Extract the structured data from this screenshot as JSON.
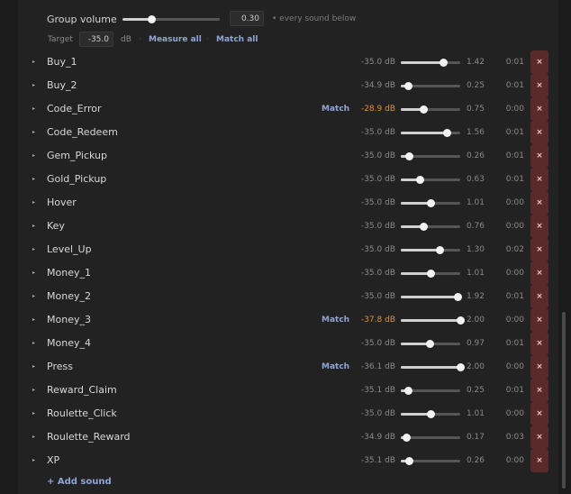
{
  "group": {
    "volume_label": "Group volume",
    "volume_value": 0.3,
    "volume_text": "0.30",
    "note": "• every sound below",
    "target_label": "Target",
    "target_value": "-35.0",
    "target_unit": "dB",
    "measure_all": "Measure all",
    "match_all": "Match all",
    "separator": "·"
  },
  "slider_max": 2.0,
  "colors": {
    "link": "#8fa5d8",
    "warning": "#e0903a",
    "delete_bg": "#5a2a2a"
  },
  "icons": {
    "expand": "triangle-right",
    "delete": "x"
  },
  "match_label": "Match",
  "delete_label": "×",
  "expand_glyph": "▸",
  "sounds": [
    {
      "name": "Buy_1",
      "db": "-35.0 dB",
      "volume": "1.42",
      "duration": "0:01",
      "match": false,
      "warn": false
    },
    {
      "name": "Buy_2",
      "db": "-34.9 dB",
      "volume": "0.25",
      "duration": "0:01",
      "match": false,
      "warn": false
    },
    {
      "name": "Code_Error",
      "db": "-28.9 dB",
      "volume": "0.75",
      "duration": "0:00",
      "match": true,
      "warn": true
    },
    {
      "name": "Code_Redeem",
      "db": "-35.0 dB",
      "volume": "1.56",
      "duration": "0:01",
      "match": false,
      "warn": false
    },
    {
      "name": "Gem_Pickup",
      "db": "-35.0 dB",
      "volume": "0.26",
      "duration": "0:01",
      "match": false,
      "warn": false
    },
    {
      "name": "Gold_Pickup",
      "db": "-35.0 dB",
      "volume": "0.63",
      "duration": "0:01",
      "match": false,
      "warn": false
    },
    {
      "name": "Hover",
      "db": "-35.0 dB",
      "volume": "1.01",
      "duration": "0:00",
      "match": false,
      "warn": false
    },
    {
      "name": "Key",
      "db": "-35.0 dB",
      "volume": "0.76",
      "duration": "0:00",
      "match": false,
      "warn": false
    },
    {
      "name": "Level_Up",
      "db": "-35.0 dB",
      "volume": "1.30",
      "duration": "0:02",
      "match": false,
      "warn": false
    },
    {
      "name": "Money_1",
      "db": "-35.0 dB",
      "volume": "1.01",
      "duration": "0:00",
      "match": false,
      "warn": false
    },
    {
      "name": "Money_2",
      "db": "-35.0 dB",
      "volume": "1.92",
      "duration": "0:01",
      "match": false,
      "warn": false
    },
    {
      "name": "Money_3",
      "db": "-37.8 dB",
      "volume": "2.00",
      "duration": "0:00",
      "match": true,
      "warn": true
    },
    {
      "name": "Money_4",
      "db": "-35.0 dB",
      "volume": "0.97",
      "duration": "0:01",
      "match": false,
      "warn": false
    },
    {
      "name": "Press",
      "db": "-36.1 dB",
      "volume": "2.00",
      "duration": "0:00",
      "match": true,
      "warn": false
    },
    {
      "name": "Reward_Claim",
      "db": "-35.1 dB",
      "volume": "0.25",
      "duration": "0:01",
      "match": false,
      "warn": false
    },
    {
      "name": "Roulette_Click",
      "db": "-35.0 dB",
      "volume": "1.01",
      "duration": "0:00",
      "match": false,
      "warn": false
    },
    {
      "name": "Roulette_Reward",
      "db": "-34.9 dB",
      "volume": "0.17",
      "duration": "0:03",
      "match": false,
      "warn": false
    },
    {
      "name": "XP",
      "db": "-35.1 dB",
      "volume": "0.26",
      "duration": "0:00",
      "match": false,
      "warn": false
    }
  ],
  "add_sound": "+ Add sound"
}
